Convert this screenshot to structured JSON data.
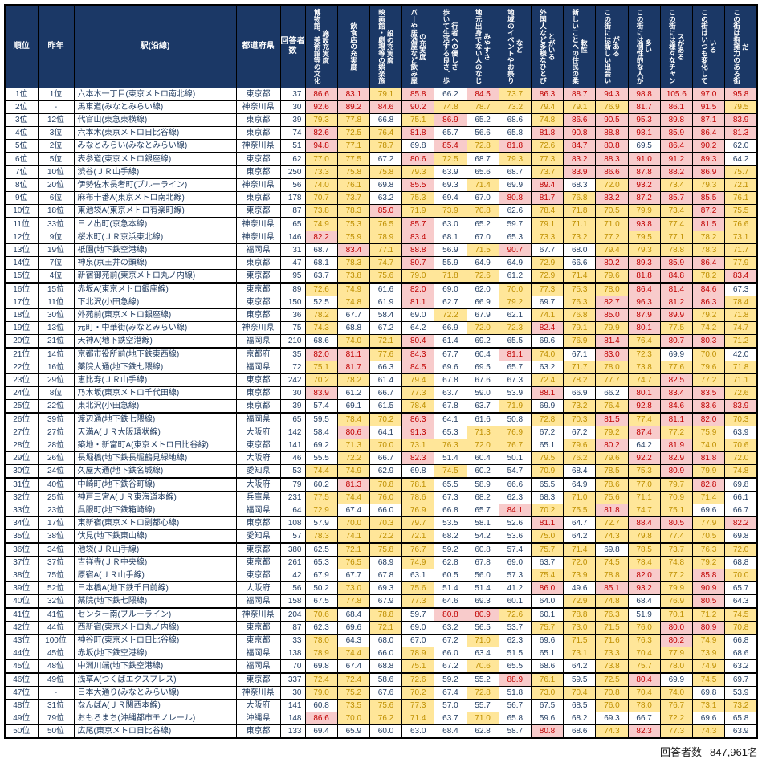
{
  "columns": {
    "rank": "順位",
    "last_year": "昨年",
    "station": "駅(沿線)",
    "prefecture": "都道府県",
    "respondents": "回答者数",
    "scores": [
      "博物館、美術館等の文化施設充実度",
      "飲食店の充実度",
      "映画館・劇場等の娯楽施設の充実度",
      "バーや居酒屋など飲み屋の充実度",
      "歩いて生活する良さ、歩行者への優しさ",
      "地元出身でない人のなじみやすさ",
      "地域のイベントやお祭りなど",
      "外国人など多様なひとびとがいる",
      "新しいことへの住民の柔軟性",
      "この街には新しい出会いがある",
      "この街には個性的な人が多い",
      "この街には様々なチャンスがある",
      "この街はいつも変化している",
      "この街は抱擁力のある街だ"
    ]
  },
  "thresholds": {
    "high": 80,
    "mid": 70
  },
  "colors": {
    "header_bg": "#1B3866",
    "header_text": "#FFFFFF",
    "body_text": "#1F3A5F",
    "high_bg": "#F8CBCB",
    "high_text": "#C00000",
    "mid_bg": "#FFE699",
    "mid_text": "#BF8F00",
    "border": "#000000"
  },
  "rows": [
    {
      "rank": "1位",
      "prev": "1位",
      "station": "六本木一丁目(東京メトロ南北線)",
      "pref": "東京都",
      "n": 37,
      "scores": [
        86.6,
        83.1,
        79.1,
        85.8,
        66.2,
        84.5,
        73.7,
        86.3,
        88.7,
        94.3,
        98.8,
        105.6,
        97.0,
        95.8
      ]
    },
    {
      "rank": "2位",
      "prev": "-",
      "station": "馬車道(みなとみらい線)",
      "pref": "神奈川県",
      "n": 30,
      "scores": [
        92.6,
        89.2,
        84.6,
        90.2,
        74.8,
        78.7,
        73.2,
        79.4,
        79.1,
        76.9,
        81.7,
        86.1,
        91.5,
        79.5
      ]
    },
    {
      "rank": "3位",
      "prev": "12位",
      "station": "代官山(東急東横線)",
      "pref": "東京都",
      "n": 39,
      "scores": [
        79.3,
        77.8,
        66.8,
        75.1,
        86.9,
        65.2,
        68.6,
        74.8,
        86.6,
        90.5,
        95.3,
        89.8,
        87.1,
        83.9
      ]
    },
    {
      "rank": "4位",
      "prev": "3位",
      "station": "六本木(東京メトロ日比谷線)",
      "pref": "東京都",
      "n": 74,
      "scores": [
        82.6,
        72.5,
        76.4,
        81.8,
        65.7,
        56.6,
        65.8,
        81.8,
        90.8,
        88.8,
        98.1,
        85.9,
        86.4,
        81.3
      ]
    },
    {
      "rank": "5位",
      "prev": "2位",
      "station": "みなとみらい(みなとみらい線)",
      "pref": "神奈川県",
      "n": 51,
      "scores": [
        94.8,
        77.1,
        78.7,
        69.8,
        85.4,
        72.8,
        81.8,
        72.6,
        84.7,
        80.8,
        69.5,
        86.4,
        90.2,
        62.0
      ]
    },
    {
      "rank": "6位",
      "prev": "5位",
      "station": "表参道(東京メトロ銀座線)",
      "pref": "東京都",
      "n": 62,
      "scores": [
        77.0,
        77.5,
        67.2,
        80.6,
        72.5,
        68.7,
        79.3,
        77.3,
        83.2,
        88.3,
        91.0,
        91.2,
        89.3,
        64.2
      ]
    },
    {
      "rank": "7位",
      "prev": "10位",
      "station": "渋谷(ＪＲ山手線)",
      "pref": "東京都",
      "n": 250,
      "scores": [
        73.3,
        75.8,
        75.8,
        79.3,
        63.9,
        65.6,
        68.7,
        73.7,
        83.9,
        86.6,
        87.8,
        88.2,
        86.9,
        75.7
      ]
    },
    {
      "rank": "8位",
      "prev": "20位",
      "station": "伊勢佐木長者町(ブルーライン)",
      "pref": "神奈川県",
      "n": 56,
      "scores": [
        74.0,
        76.1,
        69.8,
        85.5,
        69.3,
        71.4,
        69.9,
        89.4,
        68.3,
        72.0,
        93.2,
        73.4,
        79.3,
        72.1
      ]
    },
    {
      "rank": "9位",
      "prev": "6位",
      "station": "麻布十番A(東京メトロ南北線)",
      "pref": "東京都",
      "n": 178,
      "scores": [
        70.7,
        73.7,
        63.2,
        75.3,
        69.4,
        67.0,
        80.8,
        81.7,
        76.8,
        83.2,
        87.2,
        85.7,
        85.5,
        76.1
      ]
    },
    {
      "rank": "10位",
      "prev": "18位",
      "station": "東池袋A(東京メトロ有楽町線)",
      "pref": "東京都",
      "n": 87,
      "scores": [
        73.8,
        78.3,
        85.0,
        71.9,
        73.9,
        70.8,
        62.6,
        78.4,
        71.8,
        70.5,
        79.9,
        73.4,
        87.2,
        75.5
      ]
    },
    {
      "rank": "11位",
      "prev": "33位",
      "station": "日ノ出町(京急本線)",
      "pref": "神奈川県",
      "n": 65,
      "scores": [
        74.9,
        75.3,
        76.5,
        85.7,
        63.0,
        65.2,
        59.7,
        79.1,
        71.1,
        71.0,
        93.8,
        77.4,
        81.5,
        76.6
      ]
    },
    {
      "rank": "12位",
      "prev": "9位",
      "station": "桜木町(ＪＲ京浜東北線)",
      "pref": "神奈川県",
      "n": 146,
      "scores": [
        82.2,
        75.9,
        78.9,
        83.4,
        68.1,
        67.0,
        65.3,
        73.3,
        73.2,
        77.2,
        79.5,
        77.1,
        78.2,
        73.1
      ]
    },
    {
      "rank": "13位",
      "prev": "19位",
      "station": "祇園(地下鉄空港線)",
      "pref": "福岡県",
      "n": 31,
      "scores": [
        68.7,
        83.4,
        77.1,
        88.8,
        56.9,
        71.5,
        90.7,
        67.7,
        68.0,
        79.4,
        79.3,
        78.8,
        78.3,
        71.7
      ]
    },
    {
      "rank": "14位",
      "prev": "7位",
      "station": "神泉(京王井の頭線)",
      "pref": "東京都",
      "n": 47,
      "scores": [
        68.1,
        78.3,
        74.7,
        80.7,
        55.9,
        64.9,
        64.9,
        72.9,
        66.6,
        80.2,
        89.3,
        85.9,
        86.4,
        77.9
      ]
    },
    {
      "rank": "15位",
      "prev": "4位",
      "station": "新宿御苑前(東京メトロ丸ノ内線)",
      "pref": "東京都",
      "n": 95,
      "scores": [
        63.7,
        73.8,
        75.6,
        79.0,
        71.8,
        72.6,
        61.2,
        72.9,
        71.4,
        79.6,
        81.8,
        84.8,
        78.2,
        83.4
      ]
    },
    {
      "rank": "16位",
      "prev": "15位",
      "station": "赤坂A(東京メトロ銀座線)",
      "pref": "東京都",
      "n": 89,
      "scores": [
        72.6,
        74.9,
        61.6,
        82.0,
        69.0,
        62.0,
        70.0,
        77.3,
        75.3,
        78.0,
        86.4,
        81.4,
        84.6,
        67.3
      ]
    },
    {
      "rank": "17位",
      "prev": "11位",
      "station": "下北沢(小田急線)",
      "pref": "東京都",
      "n": 150,
      "scores": [
        52.5,
        74.8,
        61.9,
        81.1,
        62.7,
        66.9,
        79.2,
        69.7,
        76.3,
        82.7,
        96.3,
        81.2,
        86.3,
        78.4
      ]
    },
    {
      "rank": "18位",
      "prev": "30位",
      "station": "外苑前(東京メトロ銀座線)",
      "pref": "東京都",
      "n": 36,
      "scores": [
        78.2,
        67.7,
        58.4,
        69.0,
        72.2,
        67.9,
        62.1,
        74.1,
        76.8,
        85.0,
        87.9,
        89.9,
        79.2,
        71.8
      ]
    },
    {
      "rank": "19位",
      "prev": "13位",
      "station": "元町・中華街(みなとみらい線)",
      "pref": "神奈川県",
      "n": 75,
      "scores": [
        74.3,
        68.8,
        67.2,
        64.2,
        66.9,
        72.0,
        72.3,
        82.4,
        79.1,
        79.9,
        80.1,
        77.5,
        74.2,
        74.7
      ]
    },
    {
      "rank": "20位",
      "prev": "21位",
      "station": "天神A(地下鉄空港線)",
      "pref": "福岡県",
      "n": 210,
      "scores": [
        68.6,
        74.0,
        72.1,
        80.4,
        61.4,
        69.2,
        65.5,
        69.6,
        76.9,
        81.4,
        76.4,
        80.7,
        80.3,
        71.2
      ]
    },
    {
      "rank": "21位",
      "prev": "14位",
      "station": "京都市役所前(地下鉄東西線)",
      "pref": "京都府",
      "n": 35,
      "scores": [
        82.0,
        81.1,
        77.6,
        84.3,
        67.7,
        60.4,
        81.1,
        74.0,
        67.1,
        83.0,
        72.3,
        69.9,
        70.0,
        42.0
      ]
    },
    {
      "rank": "22位",
      "prev": "16位",
      "station": "薬院大通(地下鉄七隈線)",
      "pref": "福岡県",
      "n": 72,
      "scores": [
        75.1,
        81.7,
        66.3,
        84.5,
        69.6,
        69.5,
        65.7,
        63.2,
        71.7,
        78.0,
        73.8,
        77.6,
        79.6,
        71.8
      ]
    },
    {
      "rank": "23位",
      "prev": "29位",
      "station": "恵比寿(ＪＲ山手線)",
      "pref": "東京都",
      "n": 242,
      "scores": [
        70.2,
        78.2,
        61.4,
        79.4,
        67.8,
        67.6,
        67.3,
        72.4,
        78.2,
        77.7,
        74.7,
        82.5,
        77.2,
        71.1
      ]
    },
    {
      "rank": "24位",
      "prev": "8位",
      "station": "乃木坂(東京メトロ千代田線)",
      "pref": "東京都",
      "n": 30,
      "scores": [
        83.9,
        61.2,
        66.7,
        77.3,
        63.7,
        59.0,
        53.9,
        88.1,
        66.9,
        66.2,
        80.1,
        83.4,
        83.5,
        72.6
      ]
    },
    {
      "rank": "25位",
      "prev": "22位",
      "station": "東北沢(小田急線)",
      "pref": "東京都",
      "n": 39,
      "scores": [
        57.4,
        69.1,
        61.5,
        78.4,
        67.8,
        63.7,
        71.9,
        69.9,
        73.2,
        76.4,
        92.8,
        84.6,
        83.6,
        83.9
      ]
    },
    {
      "rank": "26位",
      "prev": "39位",
      "station": "渡辺通(地下鉄七隈線)",
      "pref": "福岡県",
      "n": 65,
      "scores": [
        59.5,
        78.4,
        70.2,
        86.3,
        64.1,
        61.6,
        50.8,
        72.8,
        70.3,
        81.5,
        77.4,
        81.1,
        82.0,
        70.3
      ]
    },
    {
      "rank": "27位",
      "prev": "27位",
      "station": "天満A(ＪＲ大阪環状線)",
      "pref": "大阪府",
      "n": 142,
      "scores": [
        58.4,
        80.6,
        64.1,
        91.3,
        65.3,
        71.3,
        76.9,
        67.2,
        67.2,
        79.2,
        87.4,
        77.2,
        75.9,
        63.9
      ]
    },
    {
      "rank": "28位",
      "prev": "28位",
      "station": "築地・新富町A(東京メトロ日比谷線)",
      "pref": "東京都",
      "n": 141,
      "scores": [
        69.2,
        71.3,
        70.0,
        73.1,
        76.3,
        72.0,
        76.7,
        65.1,
        79.6,
        80.2,
        64.2,
        81.9,
        74.0,
        70.6
      ]
    },
    {
      "rank": "29位",
      "prev": "26位",
      "station": "長堀橋(地下鉄長堀鶴見緑地線)",
      "pref": "大阪府",
      "n": 46,
      "scores": [
        55.5,
        72.2,
        66.7,
        82.3,
        51.4,
        60.4,
        50.1,
        79.5,
        76.2,
        79.6,
        92.2,
        82.9,
        81.8,
        72.0
      ]
    },
    {
      "rank": "30位",
      "prev": "24位",
      "station": "久屋大通(地下鉄名城線)",
      "pref": "愛知県",
      "n": 53,
      "scores": [
        74.4,
        74.9,
        62.9,
        69.8,
        74.5,
        60.2,
        54.7,
        70.9,
        68.4,
        78.5,
        75.3,
        80.9,
        79.9,
        74.8
      ]
    },
    {
      "rank": "31位",
      "prev": "40位",
      "station": "中崎町(地下鉄谷町線)",
      "pref": "大阪府",
      "n": 79,
      "scores": [
        60.2,
        81.3,
        70.8,
        78.1,
        65.5,
        58.9,
        66.6,
        65.5,
        64.9,
        78.6,
        77.0,
        79.7,
        82.8,
        69.8
      ]
    },
    {
      "rank": "32位",
      "prev": "25位",
      "station": "神戸三宮A(ＪＲ東海道本線)",
      "pref": "兵庫県",
      "n": 231,
      "scores": [
        77.5,
        74.4,
        76.0,
        78.6,
        67.3,
        68.2,
        62.3,
        68.3,
        71.0,
        75.6,
        71.1,
        70.9,
        71.4,
        66.1
      ]
    },
    {
      "rank": "33位",
      "prev": "23位",
      "station": "呉服町(地下鉄箱崎線)",
      "pref": "福岡県",
      "n": 64,
      "scores": [
        72.9,
        67.4,
        66.0,
        76.9,
        66.8,
        65.7,
        84.1,
        70.2,
        75.5,
        81.8,
        74.7,
        75.1,
        69.6,
        66.7
      ]
    },
    {
      "rank": "34位",
      "prev": "17位",
      "station": "東新宿(東京メトロ副都心線)",
      "pref": "東京都",
      "n": 108,
      "scores": [
        57.9,
        70.0,
        70.3,
        79.7,
        53.5,
        58.1,
        52.6,
        81.1,
        64.7,
        72.7,
        88.4,
        80.5,
        77.9,
        82.2
      ]
    },
    {
      "rank": "35位",
      "prev": "38位",
      "station": "伏見(地下鉄東山線)",
      "pref": "愛知県",
      "n": 57,
      "scores": [
        78.3,
        74.1,
        72.2,
        72.1,
        68.2,
        54.2,
        53.6,
        75.0,
        64.2,
        74.3,
        79.8,
        77.4,
        70.5,
        69.8
      ]
    },
    {
      "rank": "36位",
      "prev": "34位",
      "station": "池袋(ＪＲ山手線)",
      "pref": "東京都",
      "n": 380,
      "scores": [
        62.5,
        72.1,
        75.8,
        76.7,
        59.2,
        60.8,
        57.4,
        75.7,
        71.4,
        69.8,
        78.5,
        73.7,
        76.3,
        72.0
      ]
    },
    {
      "rank": "37位",
      "prev": "37位",
      "station": "吉祥寺(ＪＲ中央線)",
      "pref": "東京都",
      "n": 261,
      "scores": [
        65.3,
        76.5,
        68.9,
        74.9,
        62.8,
        67.8,
        69.0,
        63.7,
        72.0,
        74.5,
        78.4,
        74.8,
        79.2,
        68.8
      ]
    },
    {
      "rank": "38位",
      "prev": "75位",
      "station": "原宿A(ＪＲ山手線)",
      "pref": "東京都",
      "n": 42,
      "scores": [
        67.9,
        67.7,
        67.8,
        63.1,
        60.5,
        56.0,
        57.3,
        75.4,
        73.9,
        78.8,
        82.0,
        77.2,
        85.8,
        70.0
      ]
    },
    {
      "rank": "39位",
      "prev": "52位",
      "station": "日本橋A(地下鉄千日前線)",
      "pref": "大阪府",
      "n": 56,
      "scores": [
        50.2,
        73.0,
        69.3,
        75.6,
        51.4,
        51.4,
        41.2,
        86.0,
        49.6,
        85.1,
        93.2,
        79.9,
        90.9,
        65.7
      ]
    },
    {
      "rank": "40位",
      "prev": "32位",
      "station": "薬院(地下鉄七隈線)",
      "pref": "福岡県",
      "n": 158,
      "scores": [
        67.5,
        77.8,
        67.9,
        77.3,
        64.6,
        69.3,
        60.1,
        64.0,
        72.9,
        74.8,
        68.4,
        76.9,
        80.5,
        64.3
      ]
    },
    {
      "rank": "41位",
      "prev": "41位",
      "station": "センター南(ブルーライン)",
      "pref": "神奈川県",
      "n": 204,
      "scores": [
        70.6,
        68.4,
        78.8,
        59.7,
        80.8,
        80.9,
        72.6,
        60.1,
        78.8,
        76.3,
        51.9,
        70.1,
        71.2,
        74.5
      ]
    },
    {
      "rank": "42位",
      "prev": "44位",
      "station": "西新宿(東京メトロ丸ノ内線)",
      "pref": "東京都",
      "n": 87,
      "scores": [
        62.3,
        69.6,
        72.1,
        69.0,
        63.2,
        56.5,
        53.7,
        75.7,
        73.0,
        71.5,
        76.0,
        80.0,
        80.9,
        70.8
      ]
    },
    {
      "rank": "43位",
      "prev": "100位",
      "station": "神谷町(東京メトロ日比谷線)",
      "pref": "東京都",
      "n": 33,
      "scores": [
        78.0,
        64.3,
        68.0,
        67.0,
        67.2,
        71.0,
        62.3,
        69.6,
        71.5,
        71.6,
        76.3,
        80.2,
        74.9,
        66.8
      ]
    },
    {
      "rank": "44位",
      "prev": "45位",
      "station": "赤坂(地下鉄空港線)",
      "pref": "福岡県",
      "n": 138,
      "scores": [
        78.9,
        74.4,
        66.0,
        78.9,
        66.0,
        63.4,
        51.5,
        65.1,
        73.1,
        73.3,
        70.4,
        77.9,
        73.9,
        68.6
      ]
    },
    {
      "rank": "45位",
      "prev": "48位",
      "station": "中洲川端(地下鉄空港線)",
      "pref": "福岡県",
      "n": 70,
      "scores": [
        69.8,
        67.4,
        68.8,
        75.1,
        67.2,
        70.6,
        65.5,
        68.6,
        64.2,
        73.8,
        75.7,
        78.0,
        74.9,
        63.2
      ]
    },
    {
      "rank": "46位",
      "prev": "49位",
      "station": "浅草A(つくばエクスプレス)",
      "pref": "東京都",
      "n": 337,
      "scores": [
        72.4,
        72.4,
        58.6,
        72.6,
        59.2,
        55.2,
        88.9,
        76.1,
        59.5,
        72.5,
        80.4,
        69.9,
        74.5,
        69.7
      ]
    },
    {
      "rank": "47位",
      "prev": "-",
      "station": "日本大通り(みなとみらい線)",
      "pref": "神奈川県",
      "n": 30,
      "scores": [
        79.0,
        75.2,
        67.6,
        70.2,
        67.4,
        72.8,
        51.8,
        73.0,
        70.4,
        70.8,
        70.4,
        74.0,
        69.8,
        53.9
      ]
    },
    {
      "rank": "48位",
      "prev": "31位",
      "station": "なんばA(ＪＲ関西本線)",
      "pref": "大阪府",
      "n": 141,
      "scores": [
        60.8,
        73.5,
        75.6,
        77.3,
        57.0,
        55.7,
        56.7,
        67.5,
        68.5,
        76.0,
        78.0,
        76.7,
        73.1,
        73.2
      ]
    },
    {
      "rank": "49位",
      "prev": "79位",
      "station": "おもろまち(沖縄都市モノレール)",
      "pref": "沖縄県",
      "n": 148,
      "scores": [
        86.6,
        70.0,
        76.2,
        71.4,
        63.7,
        71.0,
        65.8,
        59.6,
        68.2,
        69.3,
        66.7,
        72.2,
        69.6,
        65.8
      ]
    },
    {
      "rank": "50位",
      "prev": "50位",
      "station": "広尾(東京メトロ日比谷線)",
      "pref": "東京都",
      "n": 133,
      "scores": [
        69.4,
        65.9,
        60.0,
        63.0,
        68.4,
        62.8,
        58.7,
        80.8,
        68.6,
        74.3,
        82.3,
        77.3,
        74.3,
        63.9
      ]
    }
  ],
  "footer": {
    "label": "回答者数",
    "value": "847,961名"
  }
}
